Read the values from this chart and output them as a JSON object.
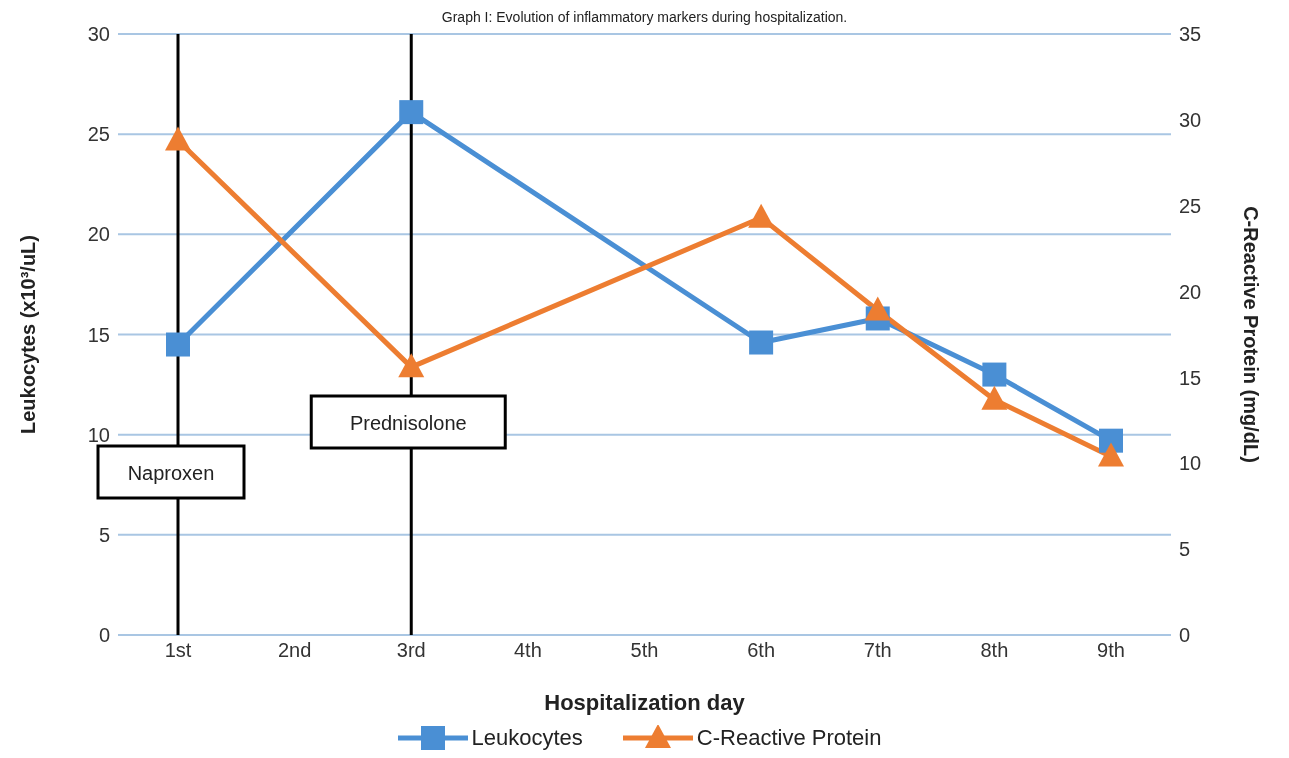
{
  "chart_data": {
    "type": "line",
    "title": "Graph I: Evolution of inflammatory markers during hospitalization.",
    "xlabel": "Hospitalization day",
    "ylabel": "Leukocytes (x10³/uL)",
    "y2label": "C-Reactive Protein (mg/dL)",
    "categories": [
      "1st",
      "2nd",
      "3rd",
      "4th",
      "5th",
      "6th",
      "7th",
      "8th",
      "9th"
    ],
    "series": [
      {
        "name": "Leukocytes",
        "color": "#4a8fd4",
        "marker": "square",
        "values": [
          14.5,
          null,
          26.1,
          null,
          null,
          14.6,
          15.8,
          13.0,
          9.7
        ]
      },
      {
        "name": "C-Reactive Protein",
        "color": "#ed7d31",
        "marker": "triangle",
        "axis": "y2",
        "values": [
          28.8,
          null,
          15.6,
          null,
          null,
          24.3,
          18.9,
          13.7,
          10.4
        ]
      }
    ],
    "ylim": [
      0,
      30
    ],
    "yticks": [
      0,
      5,
      10,
      15,
      20,
      25,
      30
    ],
    "y2lim": [
      0,
      35
    ],
    "y2ticks": [
      0,
      5,
      10,
      15,
      20,
      25,
      30,
      35
    ],
    "ref_lines": [
      {
        "axis": "x",
        "value": "1st",
        "label": "Naproxen",
        "color": "#000000"
      },
      {
        "axis": "x",
        "value": "3rd",
        "label": "Prednisolone",
        "color": "#000000"
      }
    ],
    "grid": "y",
    "legend": "bottom",
    "line_style": "solid"
  }
}
